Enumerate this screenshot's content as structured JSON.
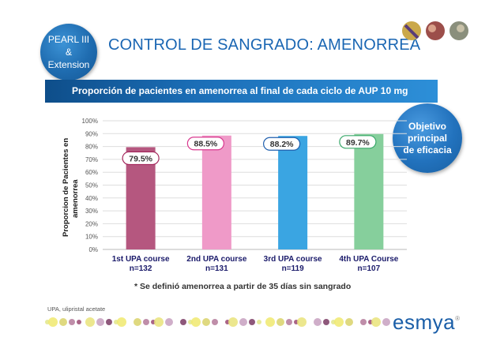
{
  "badge": {
    "line1": "PEARL III",
    "line2": "&",
    "line3": "Extension"
  },
  "title": "CONTROL DE SANGRADO: AMENORREA",
  "banner": "Proporción de pacientes en amenorrea al final de cada ciclo de AUP 10 mg",
  "objective": {
    "line1": "Objetivo",
    "line2": "principal",
    "line3": "de eficacia"
  },
  "footnote": "* Se definió amenorrea a partir  de 35 días sin sangrado",
  "abbreviation": "UPA, ulipristal acetate",
  "logo": {
    "text": "esmya",
    "mark": "®"
  },
  "colors": {
    "brand_blue": "#1a66b3",
    "banner_blue": "#1c6fb8"
  },
  "chart_data": {
    "type": "bar",
    "ylabel_line1": "Proporcion de  Pacientes en",
    "ylabel_line2": "amenorrea",
    "ylim": [
      0,
      100
    ],
    "yticks": [
      0,
      10,
      20,
      30,
      40,
      50,
      60,
      70,
      80,
      90,
      100
    ],
    "ytick_labels": [
      "0%",
      "10%",
      "20%",
      "30%",
      "40%",
      "50%",
      "60%",
      "70%",
      "80%",
      "90%",
      "100%"
    ],
    "categories": [
      {
        "label": "1st UPA course",
        "n": "n=132"
      },
      {
        "label": "2nd UPA course",
        "n": "n=131"
      },
      {
        "label": "3rd UPA course",
        "n": "n=119"
      },
      {
        "label": "4th UPA  Course",
        "n": "n=107"
      }
    ],
    "values": [
      79.5,
      88.5,
      88.2,
      89.7
    ],
    "data_labels": [
      "79.5%",
      "88.5%",
      "88.2%",
      "89.7%"
    ],
    "bar_colors": [
      "#b5577f",
      "#ef9ac8",
      "#3aa5e2",
      "#86cf9c"
    ],
    "label_border_colors": [
      "#a3245a",
      "#d9388f",
      "#1f5fae",
      "#3aa86a"
    ]
  }
}
